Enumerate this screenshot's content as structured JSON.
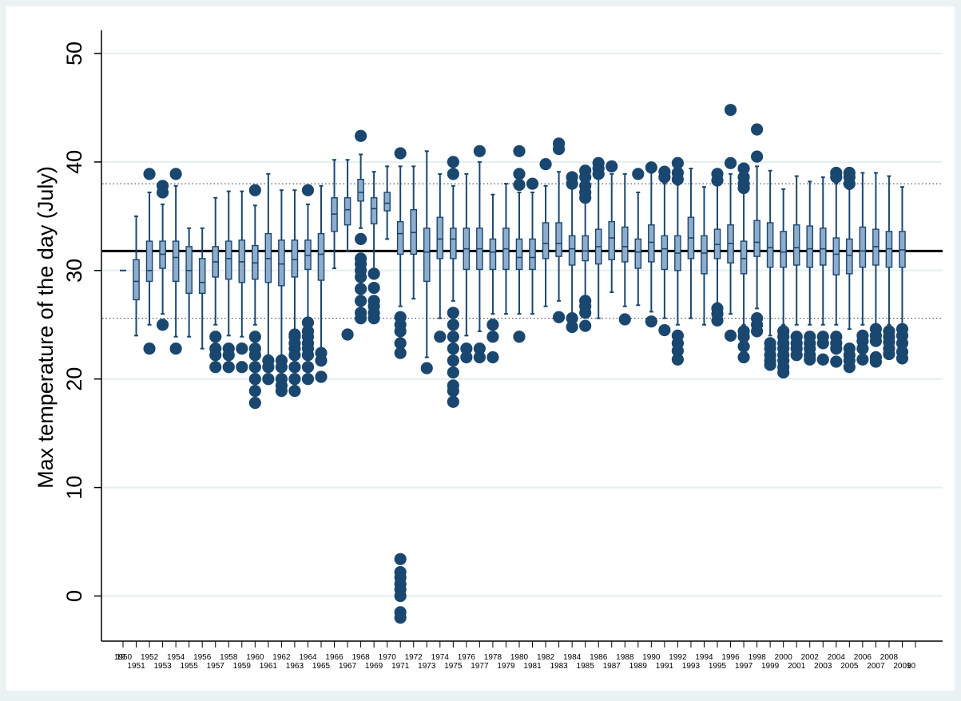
{
  "chart_data": {
    "type": "box",
    "title": "",
    "xlabel": "",
    "ylabel": "Max temperature of the day (July)",
    "ylim": [
      -2,
      51
    ],
    "yticks": [
      0,
      10,
      20,
      30,
      40,
      50
    ],
    "xlim": [
      1950,
      2010
    ],
    "xtick_top": [
      "1950",
      "1952",
      "1954",
      "1956",
      "1958",
      "1960",
      "1962",
      "1964",
      "1966",
      "1968",
      "1970",
      "1972",
      "1974",
      "1976",
      "1978",
      "1980",
      "1982",
      "1984",
      "1986",
      "1988",
      "1990",
      "1992",
      "1994",
      "1996",
      "1998",
      "2000",
      "2002",
      "2004",
      "2006",
      "2008"
    ],
    "xtick_bottom": [
      "1951",
      "1953",
      "1955",
      "1957",
      "1959",
      "1961",
      "1963",
      "1965",
      "1967",
      "1969",
      "1971",
      "1973",
      "1975",
      "1977",
      "1979",
      "1981",
      "1983",
      "1985",
      "1987",
      "1989",
      "1991",
      "1993",
      "1995",
      "1997",
      "1999",
      "2001",
      "2003",
      "2005",
      "2007",
      "2009"
    ],
    "xtick_edge_left": "19",
    "xtick_edge_right": "10",
    "reference_lines": {
      "mean": 31.8,
      "upper_dotted": 38.0,
      "lower_dotted": 25.6
    },
    "colors": {
      "background": "#eaf2f3",
      "plot_area": "#ffffff",
      "box_fill": "#8eaccb",
      "box_stroke": "#1a476f",
      "outlier": "#1a476f",
      "grid": "#e5eef0",
      "mean_line": "#000000"
    },
    "years": [
      {
        "year": 1950,
        "median": 30.0,
        "line_only": true
      },
      {
        "year": 1951,
        "q1": 27.3,
        "median": 29.0,
        "q3": 31.0,
        "wlo": 24.0,
        "whi": 35.0,
        "outliers": []
      },
      {
        "year": 1952,
        "q1": 29.0,
        "median": 30.0,
        "q3": 32.7,
        "wlo": 25.0,
        "whi": 37.2,
        "outliers": [
          38.9,
          22.8
        ]
      },
      {
        "year": 1953,
        "q1": 30.2,
        "median": 31.5,
        "q3": 32.7,
        "wlo": 26.0,
        "whi": 36.1,
        "outliers": [
          37.8,
          37.2,
          25.0
        ]
      },
      {
        "year": 1954,
        "q1": 29.0,
        "median": 31.2,
        "q3": 32.7,
        "wlo": 23.9,
        "whi": 37.8,
        "outliers": [
          38.9,
          22.8
        ]
      },
      {
        "year": 1955,
        "q1": 27.9,
        "median": 30.0,
        "q3": 32.2,
        "wlo": 23.9,
        "whi": 33.9,
        "outliers": []
      },
      {
        "year": 1956,
        "q1": 27.9,
        "median": 28.9,
        "q3": 31.1,
        "wlo": 22.8,
        "whi": 33.9,
        "outliers": []
      },
      {
        "year": 1957,
        "q1": 29.4,
        "median": 30.8,
        "q3": 32.2,
        "wlo": 25.0,
        "whi": 36.7,
        "outliers": [
          23.9,
          22.8,
          22.2,
          21.1
        ]
      },
      {
        "year": 1958,
        "q1": 29.2,
        "median": 31.1,
        "q3": 32.7,
        "wlo": 24.0,
        "whi": 37.3,
        "outliers": [
          22.8,
          22.2,
          21.1
        ]
      },
      {
        "year": 1959,
        "q1": 28.9,
        "median": 30.8,
        "q3": 32.8,
        "wlo": 23.9,
        "whi": 37.3,
        "outliers": [
          22.8,
          21.1
        ]
      },
      {
        "year": 1960,
        "q1": 29.2,
        "median": 30.7,
        "q3": 32.3,
        "wlo": 25.0,
        "whi": 36.0,
        "outliers": [
          37.4,
          23.9,
          22.8,
          22.2,
          21.1,
          20.0,
          18.9,
          17.8
        ]
      },
      {
        "year": 1961,
        "q1": 28.9,
        "median": 31.1,
        "q3": 33.4,
        "wlo": 22.2,
        "whi": 38.9,
        "outliers": [
          21.7,
          21.1,
          20.0
        ]
      },
      {
        "year": 1962,
        "q1": 28.6,
        "median": 30.6,
        "q3": 32.8,
        "wlo": 22.2,
        "whi": 37.4,
        "outliers": [
          21.7,
          21.1,
          20.0,
          19.4,
          18.9
        ]
      },
      {
        "year": 1963,
        "q1": 29.4,
        "median": 31.0,
        "q3": 32.8,
        "wlo": 24.4,
        "whi": 37.4,
        "outliers": [
          24.1,
          23.9,
          23.3,
          22.8,
          22.2,
          21.1,
          20.0,
          18.9
        ]
      },
      {
        "year": 1964,
        "q1": 30.1,
        "median": 31.4,
        "q3": 32.8,
        "wlo": 25.6,
        "whi": 36.1,
        "outliers": [
          37.4,
          25.2,
          24.4,
          23.9,
          23.3,
          22.8,
          22.2,
          21.1,
          20.0
        ]
      },
      {
        "year": 1965,
        "q1": 29.1,
        "median": 31.5,
        "q3": 33.4,
        "wlo": 22.8,
        "whi": 37.8,
        "outliers": [
          22.4,
          21.7,
          20.2
        ]
      },
      {
        "year": 1966,
        "q1": 33.6,
        "median": 35.2,
        "q3": 36.7,
        "wlo": 30.2,
        "whi": 40.2,
        "outliers": []
      },
      {
        "year": 1967,
        "q1": 34.2,
        "median": 35.6,
        "q3": 36.7,
        "wlo": 31.8,
        "whi": 40.2,
        "outliers": [
          24.1
        ]
      },
      {
        "year": 1968,
        "q1": 36.4,
        "median": 37.2,
        "q3": 38.4,
        "wlo": 33.9,
        "whi": 40.7,
        "outliers": [
          42.4,
          32.9,
          31.1,
          30.6,
          30.0,
          29.4,
          28.3,
          27.2,
          26.1,
          25.6
        ]
      },
      {
        "year": 1969,
        "q1": 34.3,
        "median": 35.7,
        "q3": 36.7,
        "wlo": 30.0,
        "whi": 39.1,
        "outliers": [
          29.7,
          28.4,
          27.2,
          26.7,
          26.1,
          25.6
        ]
      },
      {
        "year": 1970,
        "q1": 35.5,
        "median": 36.2,
        "q3": 37.2,
        "wlo": 32.9,
        "whi": 39.6,
        "outliers": []
      },
      {
        "year": 1971,
        "q1": 31.5,
        "median": 33.4,
        "q3": 34.5,
        "wlo": 26.7,
        "whi": 39.6,
        "outliers": [
          40.8,
          25.7,
          25.0,
          24.4,
          23.3,
          22.4,
          3.4,
          2.2,
          1.7,
          1.1,
          0.6,
          0.0,
          -1.5,
          -2.0
        ]
      },
      {
        "year": 1972,
        "q1": 31.5,
        "median": 33.5,
        "q3": 35.6,
        "wlo": 27.4,
        "whi": 39.6,
        "outliers": []
      },
      {
        "year": 1973,
        "q1": 29.0,
        "median": 31.7,
        "q3": 33.9,
        "wlo": 22.0,
        "whi": 41.0,
        "outliers": [
          21.0
        ]
      },
      {
        "year": 1974,
        "q1": 31.1,
        "median": 32.9,
        "q3": 34.9,
        "wlo": 25.6,
        "whi": 38.9,
        "outliers": [
          23.9
        ]
      },
      {
        "year": 1975,
        "q1": 31.1,
        "median": 32.9,
        "q3": 33.9,
        "wlo": 27.2,
        "whi": 37.8,
        "outliers": [
          40.0,
          38.9,
          26.1,
          25.0,
          23.9,
          22.8,
          21.7,
          20.6,
          19.4,
          18.9,
          17.9
        ]
      },
      {
        "year": 1976,
        "q1": 30.1,
        "median": 32.0,
        "q3": 33.9,
        "wlo": 24.0,
        "whi": 38.9,
        "outliers": [
          22.8,
          22.0
        ]
      },
      {
        "year": 1977,
        "q1": 30.1,
        "median": 32.0,
        "q3": 33.9,
        "wlo": 24.4,
        "whi": 40.0,
        "outliers": [
          41.0,
          22.8,
          22.0
        ]
      },
      {
        "year": 1978,
        "q1": 30.1,
        "median": 31.7,
        "q3": 32.9,
        "wlo": 26.0,
        "whi": 37.0,
        "outliers": [
          25.0,
          23.9,
          22.0
        ]
      },
      {
        "year": 1979,
        "q1": 30.1,
        "median": 32.0,
        "q3": 33.9,
        "wlo": 26.0,
        "whi": 38.0,
        "outliers": []
      },
      {
        "year": 1980,
        "q1": 30.1,
        "median": 31.2,
        "q3": 32.9,
        "wlo": 26.0,
        "whi": 37.2,
        "outliers": [
          41.0,
          38.9,
          37.9,
          23.9
        ]
      },
      {
        "year": 1981,
        "q1": 30.1,
        "median": 31.2,
        "q3": 32.9,
        "wlo": 26.0,
        "whi": 37.2,
        "outliers": [
          38.0
        ]
      },
      {
        "year": 1982,
        "q1": 31.1,
        "median": 32.5,
        "q3": 34.4,
        "wlo": 26.7,
        "whi": 37.8,
        "outliers": [
          39.8
        ]
      },
      {
        "year": 1983,
        "q1": 31.3,
        "median": 32.5,
        "q3": 34.4,
        "wlo": 27.2,
        "whi": 39.1,
        "outliers": [
          41.7,
          41.2,
          25.7
        ]
      },
      {
        "year": 1984,
        "q1": 30.5,
        "median": 32.0,
        "q3": 33.2,
        "wlo": 26.0,
        "whi": 37.8,
        "outliers": [
          38.6,
          38.0,
          25.6,
          24.8
        ]
      },
      {
        "year": 1985,
        "q1": 30.9,
        "median": 31.8,
        "q3": 33.2,
        "wlo": 27.3,
        "whi": 36.9,
        "outliers": [
          39.2,
          38.6,
          37.8,
          37.2,
          36.7,
          27.2,
          26.7,
          26.1,
          24.9
        ]
      },
      {
        "year": 1986,
        "q1": 30.6,
        "median": 32.2,
        "q3": 33.8,
        "wlo": 25.6,
        "whi": 38.9,
        "outliers": [
          39.9,
          39.4,
          38.9
        ]
      },
      {
        "year": 1987,
        "q1": 31.0,
        "median": 33.0,
        "q3": 34.5,
        "wlo": 28.0,
        "whi": 38.9,
        "outliers": [
          39.6
        ]
      },
      {
        "year": 1988,
        "q1": 30.8,
        "median": 32.2,
        "q3": 34.0,
        "wlo": 26.7,
        "whi": 38.9,
        "outliers": [
          25.5
        ]
      },
      {
        "year": 1989,
        "q1": 30.2,
        "median": 31.7,
        "q3": 32.9,
        "wlo": 26.8,
        "whi": 37.2,
        "outliers": [
          38.9
        ]
      },
      {
        "year": 1990,
        "q1": 30.8,
        "median": 32.6,
        "q3": 34.2,
        "wlo": 26.2,
        "whi": 39.0,
        "outliers": [
          39.5,
          25.3
        ]
      },
      {
        "year": 1991,
        "q1": 30.1,
        "median": 32.0,
        "q3": 33.2,
        "wlo": 25.6,
        "whi": 38.0,
        "outliers": [
          39.1,
          38.6,
          24.5
        ]
      },
      {
        "year": 1992,
        "q1": 30.0,
        "median": 31.6,
        "q3": 33.2,
        "wlo": 25.0,
        "whi": 37.9,
        "outliers": [
          39.9,
          39.0,
          38.4,
          24.0,
          23.3,
          22.6,
          21.8
        ]
      },
      {
        "year": 1993,
        "q1": 31.1,
        "median": 33.0,
        "q3": 34.9,
        "wlo": 25.6,
        "whi": 39.4,
        "outliers": []
      },
      {
        "year": 1994,
        "q1": 29.7,
        "median": 31.6,
        "q3": 33.2,
        "wlo": 25.0,
        "whi": 37.7,
        "outliers": []
      },
      {
        "year": 1995,
        "q1": 31.1,
        "median": 32.4,
        "q3": 33.8,
        "wlo": 27.0,
        "whi": 37.9,
        "outliers": [
          38.9,
          38.3,
          26.5,
          26.0,
          25.4
        ]
      },
      {
        "year": 1996,
        "q1": 30.7,
        "median": 32.5,
        "q3": 34.2,
        "wlo": 26.0,
        "whi": 38.9,
        "outliers": [
          44.8,
          39.9,
          24.0
        ]
      },
      {
        "year": 1997,
        "q1": 29.7,
        "median": 31.1,
        "q3": 32.7,
        "wlo": 25.0,
        "whi": 37.5,
        "outliers": [
          39.4,
          38.6,
          38.0,
          37.6,
          24.4,
          23.9,
          23.0,
          22.0
        ]
      },
      {
        "year": 1998,
        "q1": 31.3,
        "median": 32.6,
        "q3": 34.6,
        "wlo": 26.5,
        "whi": 39.6,
        "outliers": [
          43.0,
          40.5,
          25.6,
          25.0,
          24.4
        ]
      },
      {
        "year": 1999,
        "q1": 30.3,
        "median": 32.1,
        "q3": 34.4,
        "wlo": 24.0,
        "whi": 39.2,
        "outliers": [
          23.3,
          22.8,
          22.2,
          21.7,
          21.3
        ]
      },
      {
        "year": 2000,
        "q1": 30.3,
        "median": 31.7,
        "q3": 33.6,
        "wlo": 25.0,
        "whi": 37.5,
        "outliers": [
          24.4,
          23.9,
          23.3,
          22.8,
          22.2,
          21.7,
          21.1,
          20.6
        ]
      },
      {
        "year": 2001,
        "q1": 30.5,
        "median": 32.1,
        "q3": 34.2,
        "wlo": 25.0,
        "whi": 38.7,
        "outliers": [
          23.9,
          23.3,
          22.8,
          22.2
        ]
      },
      {
        "year": 2002,
        "q1": 30.3,
        "median": 32.0,
        "q3": 34.1,
        "wlo": 25.0,
        "whi": 38.2,
        "outliers": [
          23.9,
          23.3,
          22.8,
          22.2,
          21.8
        ]
      },
      {
        "year": 2003,
        "q1": 30.5,
        "median": 32.0,
        "q3": 33.9,
        "wlo": 25.0,
        "whi": 38.6,
        "outliers": [
          23.9,
          23.3,
          21.8
        ]
      },
      {
        "year": 2004,
        "q1": 29.6,
        "median": 31.5,
        "q3": 33.0,
        "wlo": 25.0,
        "whi": 38.0,
        "outliers": [
          39.0,
          38.6,
          23.9,
          23.3,
          22.8,
          21.6
        ]
      },
      {
        "year": 2005,
        "q1": 29.7,
        "median": 31.4,
        "q3": 32.9,
        "wlo": 24.6,
        "whi": 37.5,
        "outliers": [
          39.0,
          38.6,
          38.0,
          22.8,
          22.2,
          21.7,
          21.1
        ]
      },
      {
        "year": 2006,
        "q1": 30.3,
        "median": 31.8,
        "q3": 34.0,
        "wlo": 25.0,
        "whi": 39.0,
        "outliers": [
          24.0,
          23.5,
          22.8,
          21.8
        ]
      },
      {
        "year": 2007,
        "q1": 30.5,
        "median": 32.2,
        "q3": 33.8,
        "wlo": 25.0,
        "whi": 39.0,
        "outliers": [
          24.6,
          24.0,
          23.5,
          22.0,
          21.6
        ]
      },
      {
        "year": 2008,
        "q1": 30.3,
        "median": 32.0,
        "q3": 33.6,
        "wlo": 25.0,
        "whi": 38.7,
        "outliers": [
          24.4,
          23.9,
          23.4,
          22.8,
          22.3
        ]
      },
      {
        "year": 2009,
        "q1": 30.3,
        "median": 31.9,
        "q3": 33.6,
        "wlo": 25.0,
        "whi": 37.7,
        "outliers": [
          24.6,
          24.0,
          23.3,
          22.5,
          21.9
        ]
      }
    ]
  }
}
